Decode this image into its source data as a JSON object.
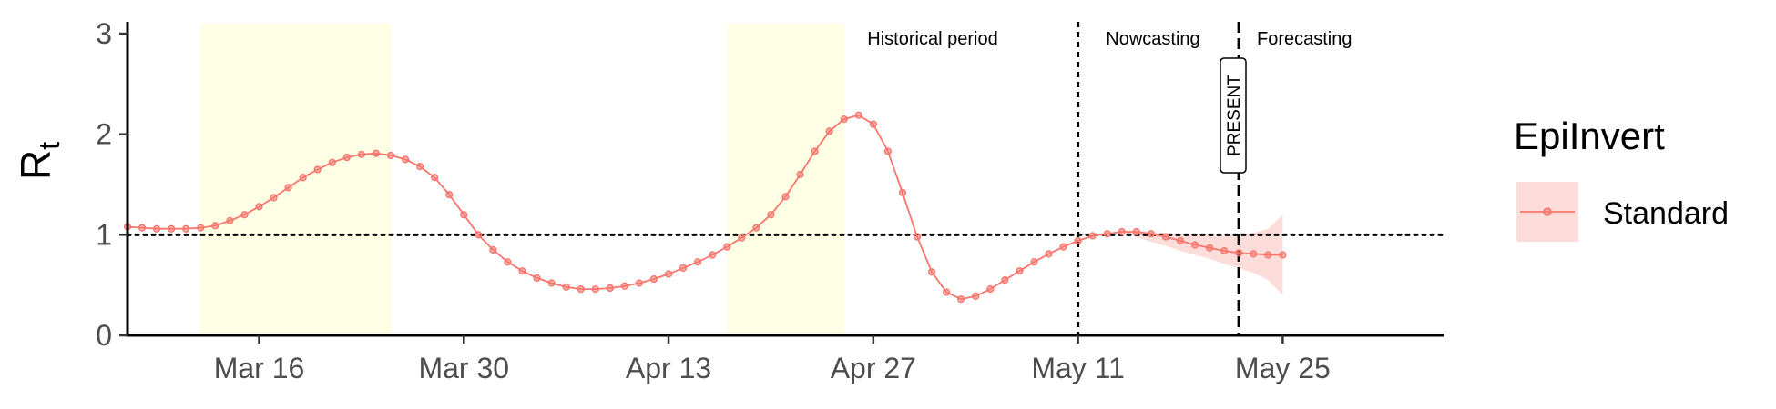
{
  "chart_data": {
    "type": "line",
    "ylabel_main": "R",
    "ylabel_sub": "t",
    "ylim": [
      0,
      3.1
    ],
    "y_ticks": [
      0,
      1,
      2,
      3
    ],
    "x_ticks": [
      {
        "date": "2020-03-16",
        "label": "Mar 16"
      },
      {
        "date": "2020-03-30",
        "label": "Mar 30"
      },
      {
        "date": "2020-04-13",
        "label": "Apr 13"
      },
      {
        "date": "2020-04-27",
        "label": "Apr 27"
      },
      {
        "date": "2020-05-11",
        "label": "May 11"
      },
      {
        "date": "2020-05-25",
        "label": "May 25"
      }
    ],
    "xlim": [
      "2020-03-07",
      "2020-06-05"
    ],
    "reference_line_y": 1,
    "shaded_regions": [
      {
        "start": "2020-03-12",
        "end": "2020-03-25",
        "color": "#FFFFE6"
      },
      {
        "start": "2020-04-17",
        "end": "2020-04-25",
        "color": "#FFFFE6"
      }
    ],
    "vertical_lines": [
      {
        "date": "2020-05-11"
      },
      {
        "date": "2020-05-22"
      }
    ],
    "period_labels": [
      "Historical period",
      "Nowcasting",
      "Forecasting"
    ],
    "present_label": "PRESENT",
    "legend": {
      "title": "EpiInvert",
      "position": "right"
    },
    "series": [
      {
        "name": "Standard",
        "color": "#F8766D",
        "band_color": "#F8766D",
        "start_date": "2020-03-07",
        "values": [
          1.08,
          1.07,
          1.06,
          1.06,
          1.06,
          1.07,
          1.09,
          1.14,
          1.2,
          1.28,
          1.37,
          1.47,
          1.57,
          1.65,
          1.72,
          1.77,
          1.8,
          1.81,
          1.79,
          1.75,
          1.68,
          1.57,
          1.4,
          1.2,
          1.0,
          0.85,
          0.73,
          0.64,
          0.57,
          0.52,
          0.48,
          0.46,
          0.46,
          0.47,
          0.49,
          0.52,
          0.56,
          0.61,
          0.67,
          0.73,
          0.8,
          0.88,
          0.97,
          1.07,
          1.2,
          1.38,
          1.6,
          1.83,
          2.03,
          2.15,
          2.19,
          2.1,
          1.83,
          1.42,
          0.98,
          0.63,
          0.43,
          0.36,
          0.39,
          0.46,
          0.55,
          0.64,
          0.73,
          0.81,
          0.88,
          0.94,
          0.99,
          1.01,
          1.03,
          1.03,
          1.01,
          0.98,
          0.94,
          0.9,
          0.87,
          0.84,
          0.82,
          0.81,
          0.8,
          0.8
        ],
        "band_lower": [
          1.03,
          1.03,
          0.98,
          0.93,
          0.89,
          0.84,
          0.8,
          0.76,
          0.71,
          0.67,
          0.62,
          0.55,
          0.4
        ],
        "band_upper": [
          1.03,
          1.03,
          1.04,
          1.03,
          1.02,
          1.01,
          1.0,
          1.0,
          0.99,
          1.0,
          1.02,
          1.06,
          1.2
        ]
      }
    ]
  }
}
